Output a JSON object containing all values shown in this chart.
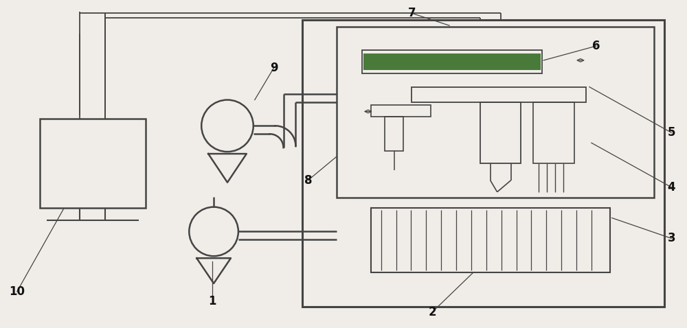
{
  "bg_color": "#f0ede8",
  "line_color": "#444444",
  "green_color": "#4a7a3a",
  "label_color": "#111111",
  "fig_width": 10.0,
  "fig_height": 4.78,
  "lw_main": 1.8,
  "lw_inner": 1.4,
  "lw_thin": 1.0
}
